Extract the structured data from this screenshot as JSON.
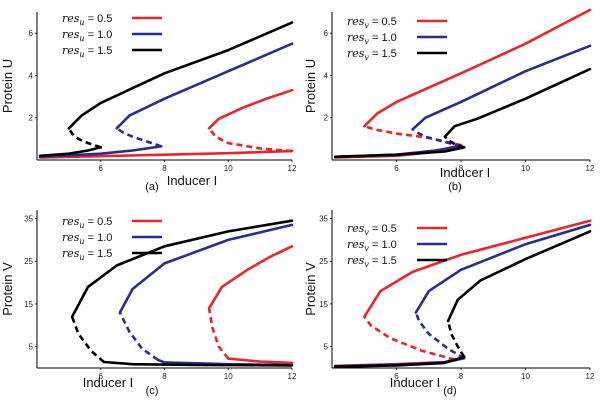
{
  "colors": {
    "red": "#e8262b",
    "blue": "#2b2c8f",
    "black": "#000000"
  },
  "chart_data": [
    {
      "panel": "(a)",
      "type": "line",
      "xlabel": "Inducer I",
      "ylabel": "Protein U",
      "xlim": [
        4,
        12
      ],
      "ylim": [
        0,
        7
      ],
      "xticks": [
        6,
        8,
        10,
        12
      ],
      "yticks": [
        2,
        4,
        6
      ],
      "legend_symbol": "res",
      "legend_sub": "u",
      "series": [
        {
          "name": "= 0.5",
          "color_key": "red",
          "lower": [
            [
              4.1,
              0.12
            ],
            [
              6,
              0.18
            ],
            [
              8,
              0.25
            ],
            [
              10,
              0.32
            ],
            [
              12,
              0.42
            ]
          ],
          "unstable": [
            [
              12,
              0.42
            ],
            [
              11,
              0.55
            ],
            [
              10,
              0.8
            ],
            [
              9.6,
              1.1
            ],
            [
              9.4,
              1.5
            ]
          ],
          "upper": [
            [
              9.4,
              1.5
            ],
            [
              9.7,
              1.95
            ],
            [
              10.5,
              2.5
            ],
            [
              11.2,
              2.9
            ],
            [
              12,
              3.3
            ]
          ]
        },
        {
          "name": "= 1.0",
          "color_key": "blue",
          "lower": [
            [
              4.1,
              0.15
            ],
            [
              6,
              0.3
            ],
            [
              7,
              0.45
            ],
            [
              7.9,
              0.65
            ]
          ],
          "unstable": [
            [
              7.9,
              0.65
            ],
            [
              7.4,
              0.9
            ],
            [
              7,
              1.1
            ],
            [
              6.7,
              1.3
            ],
            [
              6.5,
              1.5
            ]
          ],
          "upper": [
            [
              6.5,
              1.5
            ],
            [
              6.9,
              2.1
            ],
            [
              8,
              2.9
            ],
            [
              10,
              4.2
            ],
            [
              12,
              5.5
            ]
          ]
        },
        {
          "name": "= 1.5",
          "color_key": "black",
          "lower": [
            [
              4.1,
              0.2
            ],
            [
              5,
              0.3
            ],
            [
              5.6,
              0.45
            ],
            [
              6,
              0.6
            ]
          ],
          "unstable": [
            [
              6,
              0.6
            ],
            [
              5.6,
              0.8
            ],
            [
              5.3,
              1.0
            ],
            [
              5.1,
              1.25
            ],
            [
              5.0,
              1.5
            ]
          ],
          "upper": [
            [
              5.0,
              1.5
            ],
            [
              5.4,
              2.1
            ],
            [
              6,
              2.7
            ],
            [
              8,
              4.1
            ],
            [
              10,
              5.2
            ],
            [
              12,
              6.5
            ]
          ]
        }
      ]
    },
    {
      "panel": "(b)",
      "type": "line",
      "xlabel": "Inducer I",
      "ylabel": "Protein U",
      "xlim": [
        4,
        12
      ],
      "ylim": [
        0,
        7
      ],
      "xticks": [
        6,
        8,
        10,
        12
      ],
      "yticks": [
        2,
        4,
        6
      ],
      "legend_symbol": "res",
      "legend_sub": "v",
      "series": [
        {
          "name": "= 0.5",
          "color_key": "red",
          "lower": [
            [
              4.1,
              0.12
            ],
            [
              6,
              0.2
            ],
            [
              7,
              0.35
            ],
            [
              8,
              0.7
            ]
          ],
          "unstable": [
            [
              8,
              0.7
            ],
            [
              7,
              1.05
            ],
            [
              6,
              1.25
            ],
            [
              5.3,
              1.45
            ],
            [
              5.0,
              1.6
            ]
          ],
          "upper": [
            [
              5.0,
              1.6
            ],
            [
              5.4,
              2.2
            ],
            [
              6,
              2.75
            ],
            [
              8,
              4.1
            ],
            [
              10,
              5.5
            ],
            [
              12,
              7.1
            ]
          ]
        },
        {
          "name": "= 1.0",
          "color_key": "blue",
          "lower": [
            [
              4.1,
              0.15
            ],
            [
              6,
              0.25
            ],
            [
              7.2,
              0.45
            ],
            [
              8,
              0.65
            ]
          ],
          "unstable": [
            [
              8,
              0.65
            ],
            [
              7.5,
              0.85
            ],
            [
              7,
              1.05
            ],
            [
              6.7,
              1.25
            ],
            [
              6.5,
              1.45
            ]
          ],
          "upper": [
            [
              6.5,
              1.45
            ],
            [
              6.9,
              2.0
            ],
            [
              8,
              2.75
            ],
            [
              10,
              4.2
            ],
            [
              12,
              5.4
            ]
          ]
        },
        {
          "name": "= 1.5",
          "color_key": "black",
          "lower": [
            [
              4.1,
              0.15
            ],
            [
              6,
              0.25
            ],
            [
              7.5,
              0.4
            ],
            [
              8.1,
              0.6
            ]
          ],
          "unstable": [
            [
              8.1,
              0.6
            ],
            [
              7.8,
              0.75
            ],
            [
              7.6,
              0.95
            ],
            [
              7.5,
              1.1
            ]
          ],
          "upper": [
            [
              7.5,
              1.1
            ],
            [
              7.8,
              1.6
            ],
            [
              8.5,
              1.95
            ],
            [
              10,
              2.9
            ],
            [
              12,
              4.3
            ]
          ]
        }
      ]
    },
    {
      "panel": "(c)",
      "type": "line",
      "xlabel": "Inducer I",
      "ylabel": "Protein V",
      "xlim": [
        4,
        12
      ],
      "ylim": [
        0,
        37
      ],
      "xticks": [
        6,
        8,
        10,
        12
      ],
      "yticks": [
        5,
        15,
        25,
        35
      ],
      "legend_symbol": "res",
      "legend_sub": "u",
      "series": [
        {
          "name": "= 0.5",
          "color_key": "red",
          "lower": [
            [
              12,
              1.2
            ],
            [
              11,
              1.5
            ],
            [
              10,
              2.2
            ]
          ],
          "unstable": [
            [
              10,
              2.2
            ],
            [
              9.7,
              5
            ],
            [
              9.5,
              9.5
            ],
            [
              9.4,
              14
            ]
          ],
          "upper": [
            [
              9.4,
              14
            ],
            [
              9.8,
              19
            ],
            [
              10.6,
              23
            ],
            [
              11.3,
              26
            ],
            [
              12,
              28.5
            ]
          ]
        },
        {
          "name": "= 1.0",
          "color_key": "blue",
          "lower": [
            [
              12,
              0.7
            ],
            [
              10,
              0.9
            ],
            [
              8,
              1.3
            ],
            [
              7.8,
              1.9
            ]
          ],
          "unstable": [
            [
              7.8,
              1.9
            ],
            [
              7.3,
              4.5
            ],
            [
              6.9,
              8.5
            ],
            [
              6.6,
              13
            ]
          ],
          "upper": [
            [
              6.6,
              13
            ],
            [
              7,
              18.5
            ],
            [
              8,
              24.5
            ],
            [
              10,
              30
            ],
            [
              12,
              33.5
            ]
          ]
        },
        {
          "name": "= 1.5",
          "color_key": "black",
          "lower": [
            [
              12,
              0.6
            ],
            [
              9,
              0.7
            ],
            [
              7,
              0.9
            ],
            [
              6.1,
              1.4
            ]
          ],
          "unstable": [
            [
              6.1,
              1.4
            ],
            [
              5.7,
              4
            ],
            [
              5.3,
              8
            ],
            [
              5.1,
              12
            ]
          ],
          "upper": [
            [
              5.1,
              12
            ],
            [
              5.6,
              19
            ],
            [
              6.5,
              24
            ],
            [
              8,
              28.5
            ],
            [
              10,
              32
            ],
            [
              12,
              34.5
            ]
          ]
        }
      ]
    },
    {
      "panel": "(d)",
      "type": "line",
      "xlabel": "Inducer I",
      "ylabel": "Protein V",
      "xlim": [
        4,
        12
      ],
      "ylim": [
        0,
        37
      ],
      "xticks": [
        6,
        8,
        10,
        12
      ],
      "yticks": [
        5,
        15,
        25,
        35
      ],
      "legend_symbol": "res",
      "legend_sub": "v",
      "series": [
        {
          "name": "= 0.5",
          "color_key": "red",
          "lower": [
            [
              4.1,
              0.5
            ],
            [
              6,
              0.9
            ],
            [
              7.5,
              1.4
            ],
            [
              7.8,
              2.0
            ]
          ],
          "unstable": [
            [
              7.8,
              2.0
            ],
            [
              6.8,
              4.0
            ],
            [
              5.8,
              7.0
            ],
            [
              5.2,
              10
            ],
            [
              5.0,
              12
            ]
          ],
          "upper": [
            [
              5.0,
              12
            ],
            [
              5.5,
              18
            ],
            [
              6.5,
              22.5
            ],
            [
              8,
              26.5
            ],
            [
              10,
              30.5
            ],
            [
              12,
              34.5
            ]
          ]
        },
        {
          "name": "= 1.0",
          "color_key": "blue",
          "lower": [
            [
              4.1,
              0.4
            ],
            [
              6,
              0.8
            ],
            [
              7.5,
              1.3
            ],
            [
              8.1,
              2.3
            ]
          ],
          "unstable": [
            [
              8.1,
              2.3
            ],
            [
              7.6,
              4.5
            ],
            [
              7.0,
              8.0
            ],
            [
              6.7,
              11
            ],
            [
              6.6,
              13
            ]
          ],
          "upper": [
            [
              6.6,
              13
            ],
            [
              7.0,
              18
            ],
            [
              8,
              23
            ],
            [
              10,
              29
            ],
            [
              12,
              33.5
            ]
          ]
        },
        {
          "name": "= 1.5",
          "color_key": "black",
          "lower": [
            [
              4.1,
              0.3
            ],
            [
              6,
              0.6
            ],
            [
              7.5,
              1.2
            ],
            [
              8.1,
              2.6
            ]
          ],
          "unstable": [
            [
              8.1,
              2.6
            ],
            [
              7.9,
              5
            ],
            [
              7.7,
              8
            ],
            [
              7.6,
              11
            ]
          ],
          "upper": [
            [
              7.6,
              11
            ],
            [
              7.9,
              16
            ],
            [
              8.6,
              20.5
            ],
            [
              10,
              25.5
            ],
            [
              12,
              32
            ]
          ]
        }
      ]
    }
  ]
}
